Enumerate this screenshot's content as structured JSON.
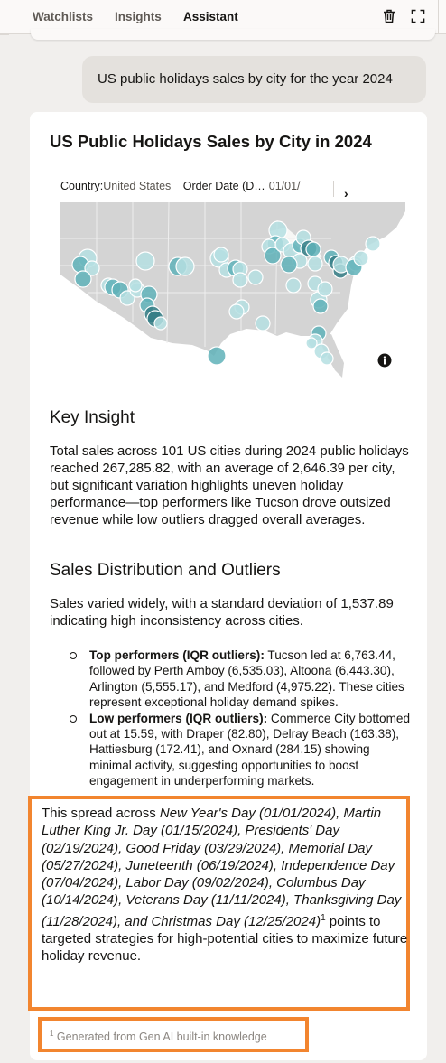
{
  "tabs": [
    {
      "label": "Watchlists",
      "active": false
    },
    {
      "label": "Insights",
      "active": false
    },
    {
      "label": "Assistant",
      "active": true
    }
  ],
  "toolbar": {
    "delete_icon": "trash-icon",
    "expand_icon": "expand-icon"
  },
  "user_message": "US public holidays sales by city for the year 2024",
  "card": {
    "title": "US Public Holidays Sales by City in 2024",
    "filters": [
      {
        "label": "Country:",
        "value": "United States"
      },
      {
        "label": "Order Date (D…",
        "value": "01/01/"
      }
    ],
    "map": {
      "type": "bubble-map",
      "region": "United States",
      "colors": {
        "light": "#b5dfe2",
        "mid": "#5fb1b8",
        "dark": "#347d85",
        "land": "#d4d4d4"
      }
    },
    "key_insight_heading": "Key Insight",
    "key_insight_text": "Total sales across 101 US cities during 2024 public holidays reached 267,285.82, with an average of 2,646.39 per city, but significant variation highlights uneven holiday performance—top performers like Tucson drove outsized revenue while low outliers dragged overall averages.",
    "distribution_heading": "Sales Distribution and Outliers",
    "distribution_text": "Sales varied widely, with a standard deviation of 1,537.89 indicating high inconsistency across cities.",
    "bullets": [
      {
        "bold": "Top performers (IQR outliers):",
        "text": " Tucson led at 6,763.44, followed by Perth Amboy (6,535.03), Altoona (6,443.30), Arlington (5,555.17), and Medford (4,975.22). These cities represent exceptional holiday demand spikes."
      },
      {
        "bold": "Low performers (IQR outliers):",
        "text": " Commerce City bottomed out at 15.59, with Draper (82.80), Delray Beach (163.38), Hattiesburg (172.41), and Oxnard (284.15) showing minimal activity, suggesting opportunities to boost engagement in underperforming markets."
      }
    ],
    "closing": {
      "lead": "This spread across ",
      "holidays": "New Year's Day (01/01/2024), Martin Luther King Jr. Day (01/15/2024), Presidents' Day (02/19/2024), Good Friday (03/29/2024), Memorial Day (05/27/2024), Juneteenth (06/19/2024), Independence Day (07/04/2024), Labor Day (09/02/2024), Columbus Day (10/14/2024), Veterans Day (11/11/2024), Thanksgiving Day (11/28/2024), and Christmas Day (12/25/2024)",
      "sup": "1",
      "tail": " points to targeted strategies for high-potential cities to maximize future holiday revenue."
    },
    "footnote": {
      "sup": "1",
      "text": " Generated from Gen AI built-in knowledge"
    }
  },
  "accent_color": "#f2852f"
}
